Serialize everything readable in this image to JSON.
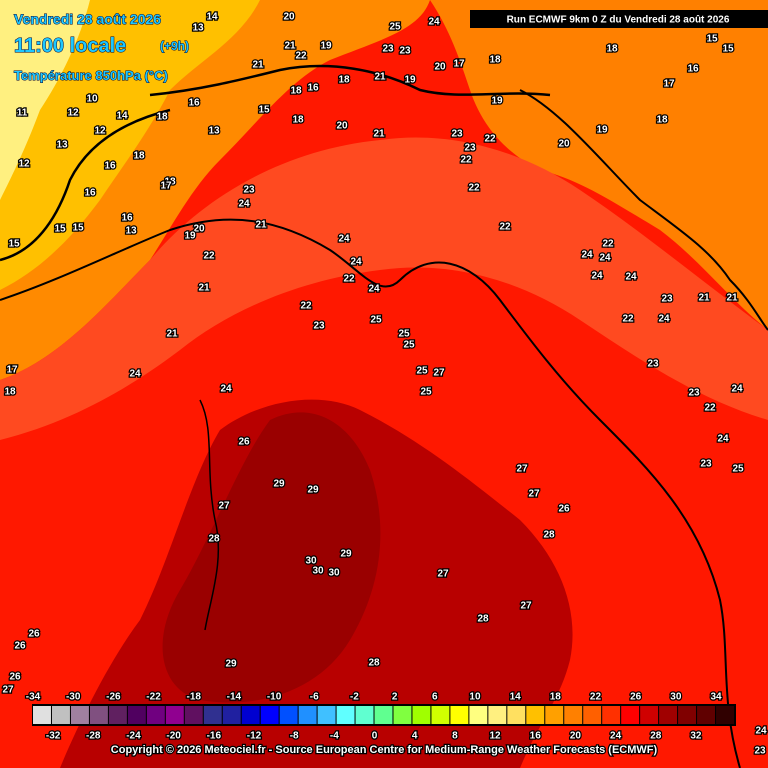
{
  "header": {
    "date": "Vendredi 28 août 2026",
    "time": "11:00 locale",
    "lead": "(+9h)",
    "variable": "Température 850hPa (°C)"
  },
  "run": "Run ECMWF 9km 0 Z du Vendredi 28 août 2026",
  "copyright": "Copyright © 2026 Meteociel.fr - Source European Centre for Medium-Range Weather Forecasts (ECMWF)",
  "scale": {
    "top_labels": [
      -34,
      -30,
      -26,
      -22,
      -18,
      -14,
      -10,
      -6,
      -2,
      2,
      6,
      10,
      14,
      18,
      22,
      26,
      30,
      34
    ],
    "bottom_labels": [
      -32,
      -28,
      -24,
      -20,
      -16,
      -12,
      -8,
      -4,
      0,
      4,
      8,
      12,
      16,
      20,
      24,
      28,
      32
    ],
    "colors": [
      "#e0e0e0",
      "#c0c0c0",
      "#a080a0",
      "#805080",
      "#602060",
      "#500060",
      "#700080",
      "#900090",
      "#601060",
      "#303090",
      "#2020a0",
      "#0000d0",
      "#0000ff",
      "#0050ff",
      "#2090ff",
      "#40c0ff",
      "#60ffff",
      "#60ffd0",
      "#60ff90",
      "#80ff40",
      "#a0ff00",
      "#d0ff00",
      "#ffff00",
      "#ffff80",
      "#fff080",
      "#ffe060",
      "#ffc000",
      "#ffa000",
      "#ff8000",
      "#ff6000",
      "#ff3000",
      "#ff0000",
      "#d00000",
      "#a00000",
      "#800000",
      "#600000",
      "#300000"
    ]
  },
  "map_labels": [
    20,
    25,
    24,
    21,
    22,
    19,
    23,
    23,
    18,
    15,
    15,
    16,
    17,
    18,
    17,
    20,
    21,
    19,
    18,
    21,
    16,
    18,
    20,
    21,
    18,
    19,
    19,
    18,
    20,
    23,
    22,
    23,
    22,
    22,
    22,
    23,
    24,
    21,
    20,
    19,
    18,
    22,
    24,
    22,
    24,
    24,
    22,
    23,
    25,
    25,
    25,
    25,
    27,
    25,
    21,
    21,
    24,
    24,
    26,
    29,
    29,
    27,
    28,
    30,
    30,
    30,
    29,
    27,
    27,
    27,
    26,
    28,
    27,
    28,
    28,
    29,
    26,
    26,
    26,
    27,
    15,
    17,
    18,
    24,
    22,
    24,
    24,
    24,
    22,
    24,
    23,
    21,
    21,
    23,
    23,
    24,
    22,
    24,
    23,
    25,
    24,
    23,
    14,
    13,
    10,
    12,
    12,
    14,
    11,
    13,
    12,
    18,
    16,
    15,
    13,
    18,
    16,
    17,
    16,
    15,
    15,
    16,
    13
  ]
}
